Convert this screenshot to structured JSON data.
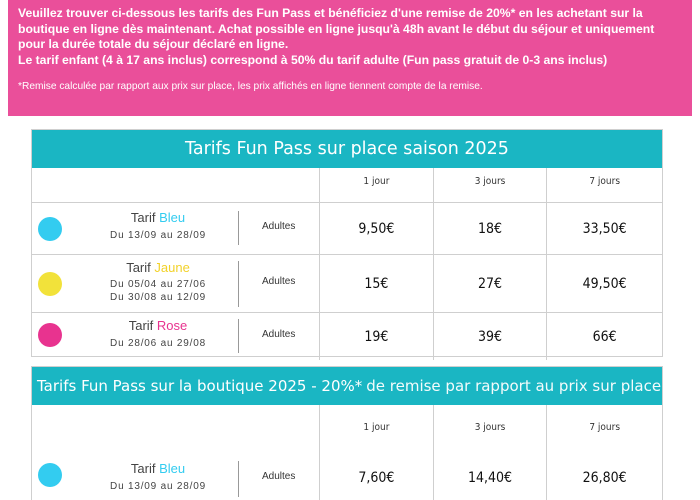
{
  "banner": {
    "intro": "Veuillez trouver ci-dessous les tarifs des Fun Pass et bénéficiez d'une remise de 20%* en les achetant sur la boutique en ligne dès maintenant. Achat possible en ligne jusqu'à 48h avant le début du séjour et uniquement pour la durée totale du séjour déclaré en ligne.",
    "child": "Le tarif enfant (4 à 17 ans inclus) correspond à 50% du tarif adulte (Fun pass gratuit de 0-3 ans inclus)",
    "note": "*Remise calculée par rapport aux prix sur place, les prix affichés en ligne tiennent compte de la remise."
  },
  "table1": {
    "title": "Tarifs Fun Pass sur place saison 2025",
    "columns": [
      "1 jour",
      "3 jours",
      "7 jours"
    ],
    "rows": [
      {
        "tarif": "Tarif",
        "color_name": "Bleu",
        "color": "#33ccf0",
        "dates": [
          "Du 13/09 au 28/09"
        ],
        "audience": "Adultes",
        "prices": [
          "9,50€",
          "18€",
          "33,50€"
        ]
      },
      {
        "tarif": "Tarif",
        "color_name": "Jaune",
        "color": "#f2e23a",
        "dates": [
          "Du 05/04 au 27/06",
          "Du 30/08 au 12/09"
        ],
        "audience": "Adultes",
        "prices": [
          "15€",
          "27€",
          "49,50€"
        ]
      },
      {
        "tarif": "Tarif",
        "color_name": "Rose",
        "color": "#e8338f",
        "dates": [
          "Du 28/06 au 29/08"
        ],
        "audience": "Adultes",
        "prices": [
          "19€",
          "39€",
          "66€"
        ]
      }
    ]
  },
  "table2": {
    "title": "Tarifs Fun Pass sur la boutique 2025 - 20%*",
    "title_suffix": "de remise par rapport au prix sur place",
    "columns": [
      "1 jour",
      "3 jours",
      "7 jours"
    ],
    "rows": [
      {
        "tarif": "Tarif",
        "color_name": "Bleu",
        "color": "#33ccf0",
        "dates": [
          "Du 13/09 au 28/09"
        ],
        "audience": "Adultes",
        "prices": [
          "7,60€",
          "14,40€",
          "26,80€"
        ]
      }
    ]
  }
}
